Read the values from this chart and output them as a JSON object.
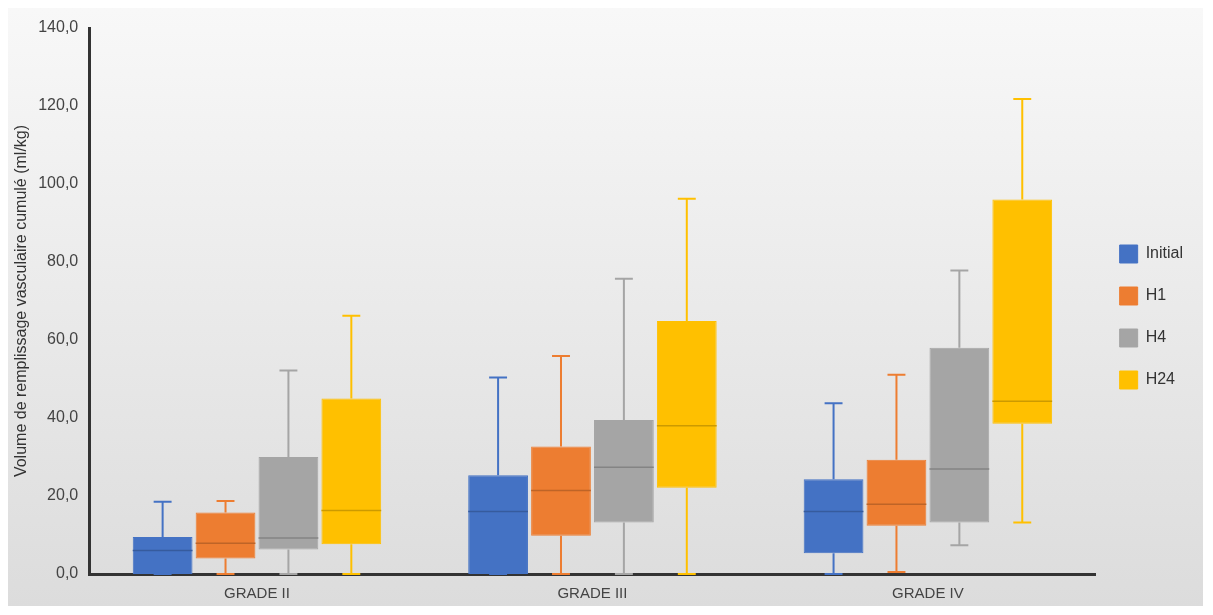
{
  "chart_data": {
    "type": "box",
    "ylabel": "Volume de remplissage vasculaire cumulé (ml/kg)",
    "categories": [
      "GRADE II",
      "GRADE III",
      "GRADE IV"
    ],
    "ylim": [
      0,
      140
    ],
    "yticks": [
      {
        "value": 0,
        "label": "0,0"
      },
      {
        "value": 20,
        "label": "20,0"
      },
      {
        "value": 40,
        "label": "40,0"
      },
      {
        "value": 60,
        "label": "60,0"
      },
      {
        "value": 80,
        "label": "80,0"
      },
      {
        "value": 100,
        "label": "100,0"
      },
      {
        "value": 120,
        "label": "120,0"
      },
      {
        "value": 140,
        "label": "140,0"
      }
    ],
    "grid": false,
    "legend": "right",
    "series": [
      {
        "name": "Initial",
        "color": "#4472c4",
        "boxes": [
          {
            "low": 0,
            "q1": 0,
            "median": 6,
            "q3": 9.5,
            "high": 18.5
          },
          {
            "low": 0,
            "q1": 0,
            "median": 16,
            "q3": 25.3,
            "high": 50.4
          },
          {
            "low": 0,
            "q1": 5.3,
            "median": 16,
            "q3": 24.3,
            "high": 43.8
          }
        ]
      },
      {
        "name": "H1",
        "color": "#ed7d31",
        "boxes": [
          {
            "low": 0,
            "q1": 4,
            "median": 7.9,
            "q3": 15.8,
            "high": 18.7
          },
          {
            "low": 0,
            "q1": 9.8,
            "median": 21.4,
            "q3": 32.7,
            "high": 55.9
          },
          {
            "low": 0.5,
            "q1": 12.4,
            "median": 17.9,
            "q3": 29.3,
            "high": 51.1
          }
        ]
      },
      {
        "name": "H4",
        "color": "#a5a5a5",
        "boxes": [
          {
            "low": 0,
            "q1": 6.3,
            "median": 9.2,
            "q3": 30,
            "high": 52.2
          },
          {
            "low": 0,
            "q1": 13.2,
            "median": 27.4,
            "q3": 39.5,
            "high": 75.7
          },
          {
            "low": 7.4,
            "q1": 13.2,
            "median": 26.9,
            "q3": 58,
            "high": 77.8
          }
        ]
      },
      {
        "name": "H24",
        "color": "#ffc000",
        "boxes": [
          {
            "low": 0,
            "q1": 7.6,
            "median": 16.3,
            "q3": 45,
            "high": 66.2
          },
          {
            "low": 0,
            "q1": 22.1,
            "median": 38,
            "q3": 64.9,
            "high": 96.2
          },
          {
            "low": 13.2,
            "q1": 38.5,
            "median": 44.3,
            "q3": 96,
            "high": 121.8
          }
        ]
      }
    ]
  }
}
